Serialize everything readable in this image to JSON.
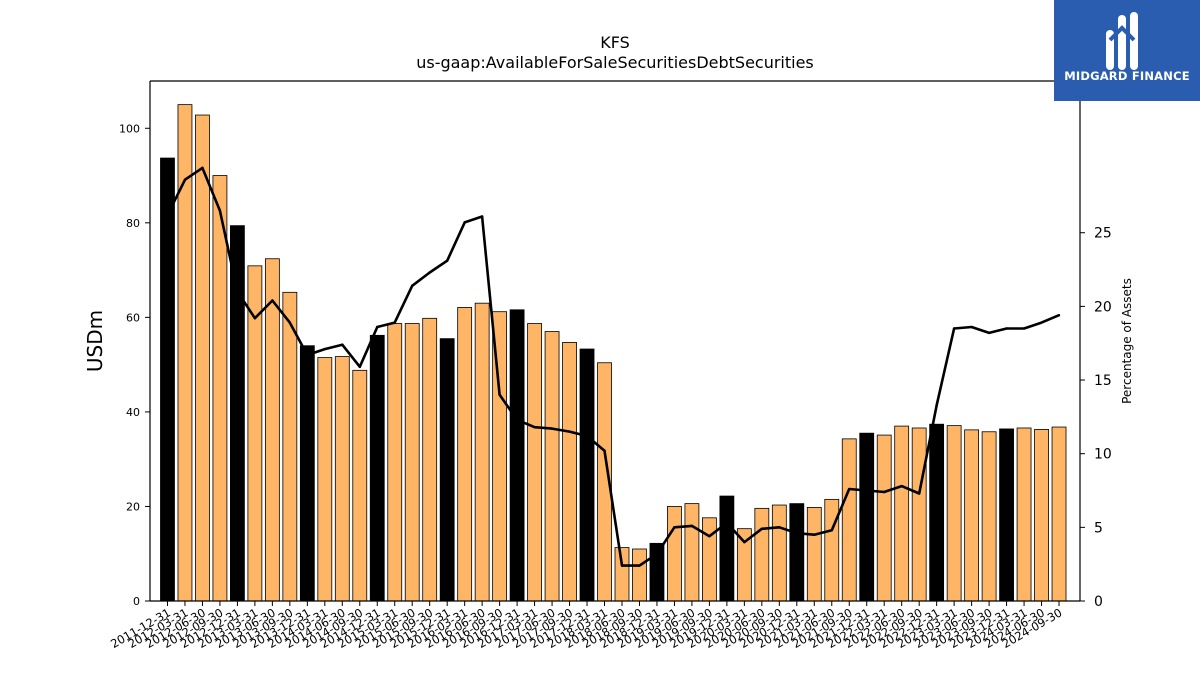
{
  "chart_data": {
    "type": "bar",
    "title": "KFS",
    "subtitle": "us-gaap:AvailableForSaleSecuritiesDebtSecurities",
    "ylabel": "USDm",
    "y2label": "Percentage of Assets",
    "ylim": [
      0,
      110
    ],
    "y2lim": [
      0,
      35.3
    ],
    "yticks": [
      0,
      20,
      40,
      60,
      80,
      100
    ],
    "y2ticks": [
      0,
      5,
      10,
      15,
      20,
      25
    ],
    "categories": [
      "2011-12-31",
      "2012-03-31",
      "2012-06-30",
      "2012-09-30",
      "2012-12-31",
      "2013-03-31",
      "2013-06-30",
      "2013-09-30",
      "2013-12-31",
      "2014-03-31",
      "2014-06-30",
      "2014-09-30",
      "2014-12-31",
      "2015-03-31",
      "2015-06-30",
      "2015-09-30",
      "2015-12-31",
      "2016-03-31",
      "2016-06-30",
      "2016-09-30",
      "2016-12-31",
      "2017-03-31",
      "2017-06-30",
      "2017-09-30",
      "2017-12-31",
      "2018-03-31",
      "2018-06-30",
      "2018-09-30",
      "2018-12-31",
      "2019-03-31",
      "2019-06-30",
      "2019-09-30",
      "2019-12-31",
      "2020-03-31",
      "2020-06-30",
      "2020-09-30",
      "2020-12-31",
      "2021-03-31",
      "2021-06-30",
      "2021-09-30",
      "2021-12-31",
      "2022-03-31",
      "2022-06-30",
      "2022-09-30",
      "2022-12-31",
      "2023-03-31",
      "2023-06-30",
      "2023-09-30",
      "2023-12-31",
      "2024-03-31",
      "2024-06-30",
      "2024-09-30"
    ],
    "series": [
      {
        "type": "bar",
        "axis": "left",
        "values": [
          93.7,
          105.0,
          102.8,
          90.0,
          79.4,
          70.9,
          72.4,
          65.3,
          54.0,
          51.5,
          51.7,
          48.8,
          56.2,
          58.7,
          58.7,
          59.8,
          55.5,
          62.1,
          63.0,
          61.2,
          61.6,
          58.7,
          57.0,
          54.7,
          53.3,
          50.4,
          11.3,
          11.0,
          12.2,
          20.0,
          20.6,
          17.6,
          22.2,
          15.3,
          19.6,
          20.3,
          20.6,
          19.8,
          21.5,
          34.3,
          35.5,
          35.1,
          37.0,
          36.6,
          37.4,
          37.1,
          36.2,
          35.8,
          36.4,
          36.6,
          36.3,
          36.8
        ],
        "highlight": [
          true,
          false,
          false,
          false,
          true,
          false,
          false,
          false,
          true,
          false,
          false,
          false,
          true,
          false,
          false,
          false,
          true,
          false,
          false,
          false,
          true,
          false,
          false,
          false,
          true,
          false,
          false,
          false,
          true,
          false,
          false,
          false,
          true,
          false,
          false,
          false,
          true,
          false,
          false,
          false,
          true,
          false,
          false,
          false,
          true,
          false,
          false,
          false,
          true,
          false,
          false,
          false
        ]
      },
      {
        "type": "line",
        "axis": "right",
        "values": [
          26.2,
          28.6,
          29.4,
          26.5,
          21.0,
          19.2,
          20.4,
          18.9,
          16.7,
          17.1,
          17.4,
          15.9,
          18.6,
          18.9,
          21.4,
          22.3,
          23.1,
          25.7,
          26.1,
          14.0,
          12.3,
          11.8,
          11.7,
          11.5,
          11.2,
          10.2,
          2.4,
          2.4,
          3.2,
          5.0,
          5.1,
          4.4,
          5.3,
          4.0,
          4.9,
          5.0,
          4.6,
          4.5,
          4.8,
          7.6,
          7.5,
          7.4,
          7.8,
          7.3,
          13.3,
          18.5,
          18.6,
          18.2,
          18.5,
          18.5,
          18.9,
          19.4
        ]
      }
    ],
    "colors": {
      "bar": "#ffb566",
      "highlight": "#000000",
      "line": "#000000",
      "edge": "#000000"
    },
    "grid": false,
    "legend": "none"
  },
  "logo": {
    "text": "MIDGARD FINANCE",
    "background": "#2a5db0"
  }
}
